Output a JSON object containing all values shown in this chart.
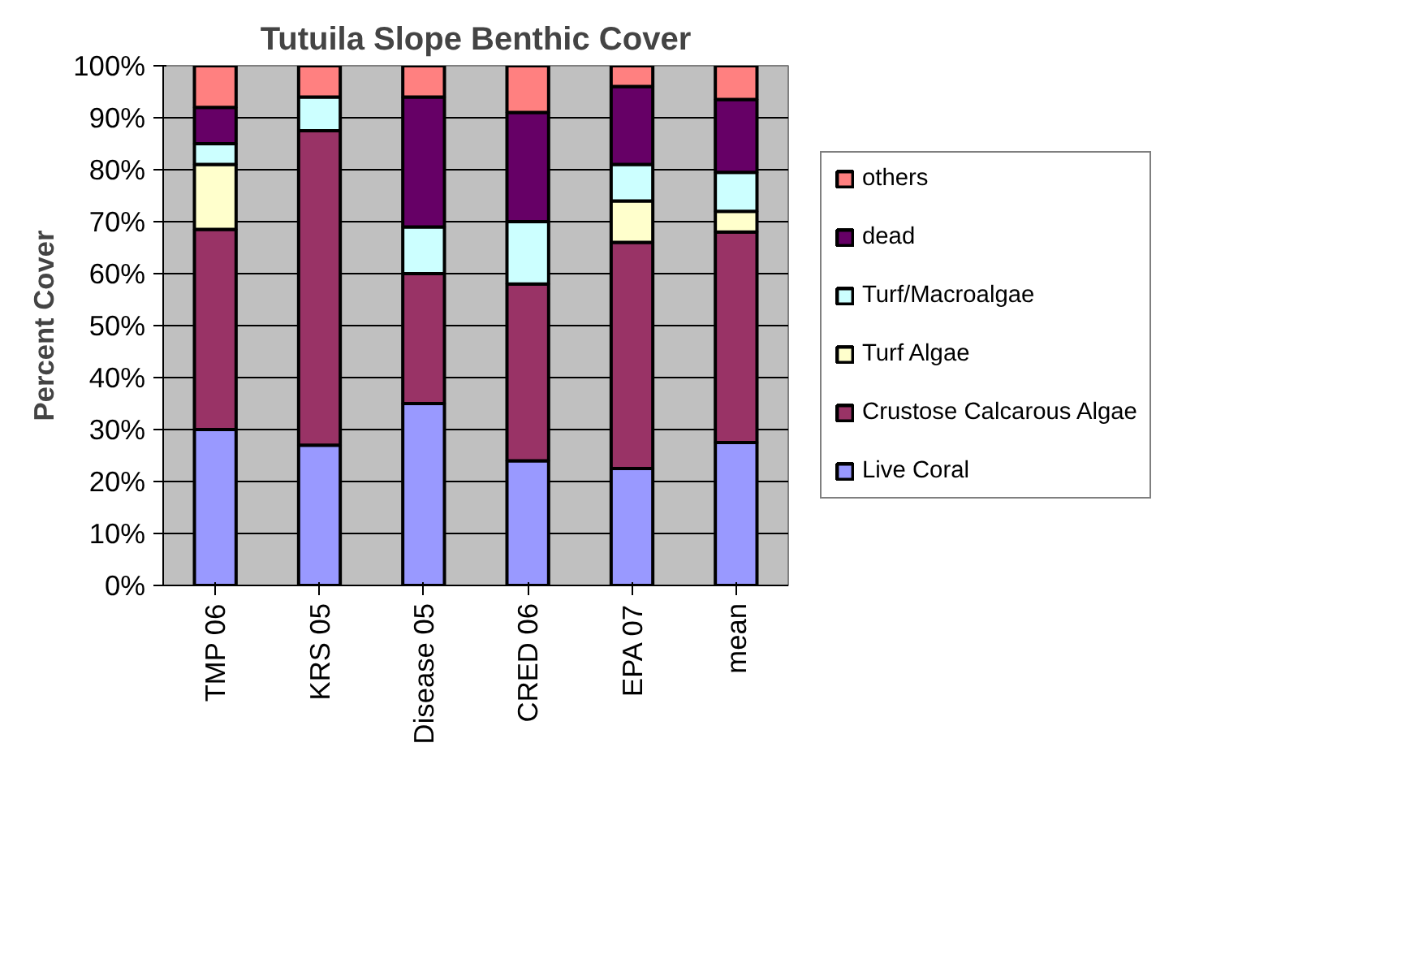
{
  "chart_data": {
    "type": "bar",
    "title": "Tutuila Slope Benthic Cover",
    "ylabel": "Percent Cover",
    "categories": [
      "TMP 06",
      "KRS 05",
      "Disease 05",
      "CRED 06",
      "EPA 07",
      "mean"
    ],
    "stacked": true,
    "series": [
      {
        "name": "Live Coral",
        "color": "#9999ff",
        "values": [
          30,
          27,
          35,
          24,
          22.5,
          27.5
        ]
      },
      {
        "name": "Crustose Calcarous Algae",
        "color": "#993366",
        "values": [
          38.5,
          60.5,
          25,
          34,
          43.5,
          40.5
        ]
      },
      {
        "name": "Turf Algae",
        "color": "#ffffcc",
        "values": [
          12.5,
          0,
          0,
          0,
          8,
          4
        ]
      },
      {
        "name": "Turf/Macroalgae",
        "color": "#ccffff",
        "values": [
          4,
          6.5,
          9,
          12,
          7,
          7.5
        ]
      },
      {
        "name": "dead",
        "color": "#660066",
        "values": [
          7,
          0,
          25,
          21,
          15,
          14
        ]
      },
      {
        "name": "others",
        "color": "#ff8080",
        "values": [
          8,
          6,
          6,
          9,
          4,
          6.5
        ]
      }
    ],
    "ylim": [
      0,
      100
    ],
    "yticks": [
      {
        "value": 0,
        "label": "0%"
      },
      {
        "value": 10,
        "label": "10%"
      },
      {
        "value": 20,
        "label": "20%"
      },
      {
        "value": 30,
        "label": "30%"
      },
      {
        "value": 40,
        "label": "40%"
      },
      {
        "value": 50,
        "label": "50%"
      },
      {
        "value": 60,
        "label": "60%"
      },
      {
        "value": 70,
        "label": "70%"
      },
      {
        "value": 80,
        "label": "80%"
      },
      {
        "value": 90,
        "label": "90%"
      },
      {
        "value": 100,
        "label": "100%"
      }
    ],
    "grid": "y",
    "legend": "right"
  }
}
